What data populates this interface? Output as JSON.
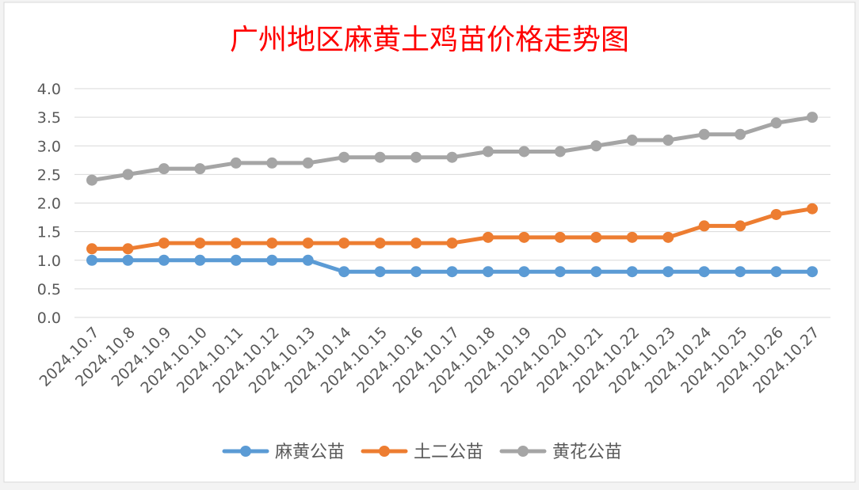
{
  "chart_data": {
    "type": "line",
    "title": "广州地区麻黄土鸡苗价格走势图",
    "title_color": "#ff0000",
    "xlabel": "",
    "ylabel": "",
    "ylim": [
      0,
      4
    ],
    "yticks": [
      "0.0",
      "0.5",
      "1.0",
      "1.5",
      "2.0",
      "2.5",
      "3.0",
      "3.5",
      "4.0"
    ],
    "grid": true,
    "legend": "bottom",
    "categories": [
      "2024.10.7",
      "2024.10.8",
      "2024.10.9",
      "2024.10.10",
      "2024.10.11",
      "2024.10.12",
      "2024.10.13",
      "2024.10.14",
      "2024.10.15",
      "2024.10.16",
      "2024.10.17",
      "2024.10.18",
      "2024.10.19",
      "2024.10.20",
      "2024.10.21",
      "2024.10.22",
      "2024.10.23",
      "2024.10.24",
      "2024.10.25",
      "2024.10.26",
      "2024.10.27"
    ],
    "series": [
      {
        "name": "麻黄公苗",
        "color": "#5b9bd5",
        "values": [
          1.0,
          1.0,
          1.0,
          1.0,
          1.0,
          1.0,
          1.0,
          0.8,
          0.8,
          0.8,
          0.8,
          0.8,
          0.8,
          0.8,
          0.8,
          0.8,
          0.8,
          0.8,
          0.8,
          0.8,
          0.8
        ]
      },
      {
        "name": "土二公苗",
        "color": "#ed7d31",
        "values": [
          1.2,
          1.2,
          1.3,
          1.3,
          1.3,
          1.3,
          1.3,
          1.3,
          1.3,
          1.3,
          1.3,
          1.4,
          1.4,
          1.4,
          1.4,
          1.4,
          1.4,
          1.6,
          1.6,
          1.8,
          1.9
        ]
      },
      {
        "name": "黄花公苗",
        "color": "#a5a5a5",
        "values": [
          2.4,
          2.5,
          2.6,
          2.6,
          2.7,
          2.7,
          2.7,
          2.8,
          2.8,
          2.8,
          2.8,
          2.9,
          2.9,
          2.9,
          3.0,
          3.1,
          3.1,
          3.2,
          3.2,
          3.4,
          3.5
        ]
      }
    ]
  }
}
